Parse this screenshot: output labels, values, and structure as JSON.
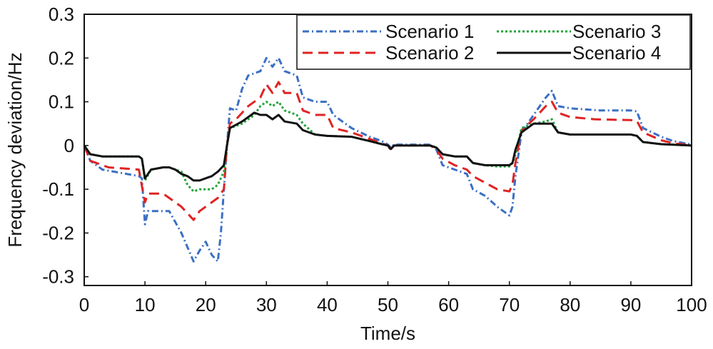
{
  "chart_data": {
    "type": "line",
    "title": "",
    "xlabel": "Time/s",
    "ylabel": "Frequency deviation/Hz",
    "xlim": [
      0,
      100
    ],
    "ylim": [
      -0.32,
      0.3
    ],
    "xticks": [
      0,
      10,
      20,
      30,
      40,
      50,
      60,
      70,
      80,
      90,
      100
    ],
    "yticks": [
      -0.3,
      -0.2,
      -0.1,
      0,
      0.1,
      0.2,
      0.3
    ],
    "ytick_labels": [
      "-0.3",
      "-0.2",
      "-0.1",
      "0",
      "0.1",
      "0.2",
      "0.3"
    ],
    "grid": false,
    "legend_position": "top-right",
    "series": [
      {
        "name": "Scenario 1",
        "color": "#3b6fc4",
        "dash": "dot-dash",
        "points": [
          [
            0,
            0
          ],
          [
            1,
            -0.035
          ],
          [
            3,
            -0.055
          ],
          [
            9,
            -0.07
          ],
          [
            9.5,
            -0.075
          ],
          [
            10,
            -0.18
          ],
          [
            10.5,
            -0.15
          ],
          [
            14,
            -0.15
          ],
          [
            16,
            -0.2
          ],
          [
            18,
            -0.265
          ],
          [
            19,
            -0.24
          ],
          [
            20,
            -0.22
          ],
          [
            21,
            -0.25
          ],
          [
            22,
            -0.265
          ],
          [
            22.5,
            -0.2
          ],
          [
            23,
            -0.1
          ],
          [
            23.5,
            0
          ],
          [
            24,
            0.085
          ],
          [
            25,
            0.08
          ],
          [
            26,
            0.13
          ],
          [
            27,
            0.16
          ],
          [
            29,
            0.17
          ],
          [
            30,
            0.2
          ],
          [
            31,
            0.18
          ],
          [
            32,
            0.2
          ],
          [
            33,
            0.17
          ],
          [
            35,
            0.16
          ],
          [
            36,
            0.11
          ],
          [
            38,
            0.1
          ],
          [
            40,
            0.1
          ],
          [
            41,
            0.07
          ],
          [
            44,
            0.04
          ],
          [
            47,
            0.02
          ],
          [
            49,
            0.01
          ],
          [
            50,
            0.002
          ],
          [
            50.5,
            -0.005
          ],
          [
            51,
            0.002
          ],
          [
            57,
            0.002
          ],
          [
            58,
            -0.01
          ],
          [
            59,
            -0.045
          ],
          [
            61,
            -0.055
          ],
          [
            63,
            -0.065
          ],
          [
            64,
            -0.1
          ],
          [
            66,
            -0.115
          ],
          [
            68,
            -0.14
          ],
          [
            70,
            -0.16
          ],
          [
            70.5,
            -0.14
          ],
          [
            71,
            -0.07
          ],
          [
            72,
            0.03
          ],
          [
            74,
            0.07
          ],
          [
            76,
            0.11
          ],
          [
            77,
            0.125
          ],
          [
            78,
            0.09
          ],
          [
            80,
            0.085
          ],
          [
            85,
            0.08
          ],
          [
            90,
            0.08
          ],
          [
            91,
            0.078
          ],
          [
            92,
            0.04
          ],
          [
            95,
            0.02
          ],
          [
            97,
            0.01
          ],
          [
            100,
            0.002
          ]
        ]
      },
      {
        "name": "Scenario 2",
        "color": "#e02323",
        "dash": "dash",
        "points": [
          [
            0,
            0
          ],
          [
            1,
            -0.035
          ],
          [
            4,
            -0.05
          ],
          [
            9,
            -0.055
          ],
          [
            10,
            -0.13
          ],
          [
            10.5,
            -0.11
          ],
          [
            13,
            -0.11
          ],
          [
            14,
            -0.12
          ],
          [
            16,
            -0.14
          ],
          [
            18,
            -0.17
          ],
          [
            19,
            -0.15
          ],
          [
            21,
            -0.13
          ],
          [
            22,
            -0.12
          ],
          [
            23,
            -0.1
          ],
          [
            23.5,
            0
          ],
          [
            24,
            0.05
          ],
          [
            25,
            0.06
          ],
          [
            27,
            0.09
          ],
          [
            29,
            0.11
          ],
          [
            30,
            0.14
          ],
          [
            31,
            0.12
          ],
          [
            32,
            0.145
          ],
          [
            33,
            0.12
          ],
          [
            35,
            0.12
          ],
          [
            36,
            0.08
          ],
          [
            38,
            0.07
          ],
          [
            40,
            0.07
          ],
          [
            41,
            0.04
          ],
          [
            44,
            0.03
          ],
          [
            47,
            0.015
          ],
          [
            49,
            0.005
          ],
          [
            50,
            0
          ],
          [
            50.5,
            -0.012
          ],
          [
            51,
            0
          ],
          [
            57,
            0
          ],
          [
            58,
            -0.01
          ],
          [
            59,
            -0.03
          ],
          [
            61,
            -0.045
          ],
          [
            63,
            -0.055
          ],
          [
            64,
            -0.07
          ],
          [
            66,
            -0.085
          ],
          [
            68,
            -0.1
          ],
          [
            70,
            -0.105
          ],
          [
            70.5,
            -0.09
          ],
          [
            71,
            -0.04
          ],
          [
            72,
            0.035
          ],
          [
            74,
            0.06
          ],
          [
            76,
            0.09
          ],
          [
            77,
            0.1
          ],
          [
            78,
            0.075
          ],
          [
            80,
            0.065
          ],
          [
            84,
            0.06
          ],
          [
            90,
            0.058
          ],
          [
            91,
            0.056
          ],
          [
            92,
            0.03
          ],
          [
            95,
            0.012
          ],
          [
            97,
            0.005
          ],
          [
            100,
            0.001
          ]
        ]
      },
      {
        "name": "Scenario 3",
        "color": "#22a33a",
        "dash": "dot",
        "points": [
          [
            0,
            0
          ],
          [
            1,
            -0.02
          ],
          [
            3,
            -0.025
          ],
          [
            9,
            -0.025
          ],
          [
            9.5,
            -0.03
          ],
          [
            10,
            -0.08
          ],
          [
            11,
            -0.055
          ],
          [
            13,
            -0.05
          ],
          [
            14,
            -0.05
          ],
          [
            15,
            -0.055
          ],
          [
            16,
            -0.06
          ],
          [
            17,
            -0.09
          ],
          [
            18,
            -0.105
          ],
          [
            19,
            -0.1
          ],
          [
            21,
            -0.1
          ],
          [
            22,
            -0.09
          ],
          [
            23,
            -0.06
          ],
          [
            23.5,
            0
          ],
          [
            24,
            0.04
          ],
          [
            26,
            0.05
          ],
          [
            28,
            0.07
          ],
          [
            29,
            0.09
          ],
          [
            30,
            0.1
          ],
          [
            31,
            0.09
          ],
          [
            32,
            0.1
          ],
          [
            33,
            0.08
          ],
          [
            35,
            0.07
          ],
          [
            36,
            0.05
          ],
          [
            38,
            0.025
          ],
          [
            40,
            0.022
          ],
          [
            44,
            0.02
          ],
          [
            47,
            0.01
          ],
          [
            49,
            0.003
          ],
          [
            50,
            0
          ],
          [
            50.5,
            -0.008
          ],
          [
            51,
            0
          ],
          [
            57,
            0
          ],
          [
            58,
            -0.005
          ],
          [
            59,
            -0.02
          ],
          [
            61,
            -0.025
          ],
          [
            63,
            -0.025
          ],
          [
            64,
            -0.04
          ],
          [
            66,
            -0.045
          ],
          [
            68,
            -0.048
          ],
          [
            70,
            -0.048
          ],
          [
            70.5,
            -0.04
          ],
          [
            71,
            -0.02
          ],
          [
            72,
            0.04
          ],
          [
            74,
            0.05
          ],
          [
            76,
            0.055
          ],
          [
            77,
            0.06
          ],
          [
            78,
            0.03
          ],
          [
            80,
            0.025
          ],
          [
            85,
            0.025
          ],
          [
            90,
            0.025
          ],
          [
            91,
            0.022
          ],
          [
            92,
            0.008
          ],
          [
            95,
            0.003
          ],
          [
            100,
            0
          ]
        ]
      },
      {
        "name": "Scenario 4",
        "color": "#111111",
        "dash": "solid",
        "points": [
          [
            0,
            0
          ],
          [
            1,
            -0.02
          ],
          [
            3,
            -0.025
          ],
          [
            9,
            -0.025
          ],
          [
            9.5,
            -0.03
          ],
          [
            10,
            -0.075
          ],
          [
            11,
            -0.055
          ],
          [
            13,
            -0.05
          ],
          [
            14,
            -0.05
          ],
          [
            15,
            -0.055
          ],
          [
            16,
            -0.065
          ],
          [
            17,
            -0.07
          ],
          [
            18,
            -0.08
          ],
          [
            19,
            -0.08
          ],
          [
            20,
            -0.075
          ],
          [
            21,
            -0.07
          ],
          [
            22,
            -0.06
          ],
          [
            23,
            -0.045
          ],
          [
            23.5,
            0
          ],
          [
            24,
            0.04
          ],
          [
            26,
            0.055
          ],
          [
            28,
            0.075
          ],
          [
            29,
            0.07
          ],
          [
            30,
            0.07
          ],
          [
            31,
            0.06
          ],
          [
            32,
            0.07
          ],
          [
            33,
            0.055
          ],
          [
            35,
            0.05
          ],
          [
            36,
            0.035
          ],
          [
            38,
            0.025
          ],
          [
            40,
            0.022
          ],
          [
            44,
            0.02
          ],
          [
            47,
            0.01
          ],
          [
            49,
            0.003
          ],
          [
            50,
            0
          ],
          [
            50.5,
            -0.008
          ],
          [
            51,
            0
          ],
          [
            57,
            0
          ],
          [
            58,
            -0.005
          ],
          [
            59,
            -0.02
          ],
          [
            61,
            -0.025
          ],
          [
            63,
            -0.025
          ],
          [
            64,
            -0.04
          ],
          [
            66,
            -0.045
          ],
          [
            68,
            -0.045
          ],
          [
            70,
            -0.045
          ],
          [
            70.5,
            -0.04
          ],
          [
            71,
            -0.01
          ],
          [
            72,
            0.03
          ],
          [
            74,
            0.05
          ],
          [
            76,
            0.05
          ],
          [
            77,
            0.05
          ],
          [
            78,
            0.03
          ],
          [
            80,
            0.025
          ],
          [
            85,
            0.025
          ],
          [
            90,
            0.025
          ],
          [
            91,
            0.022
          ],
          [
            92,
            0.008
          ],
          [
            95,
            0.003
          ],
          [
            100,
            0
          ]
        ]
      }
    ]
  }
}
